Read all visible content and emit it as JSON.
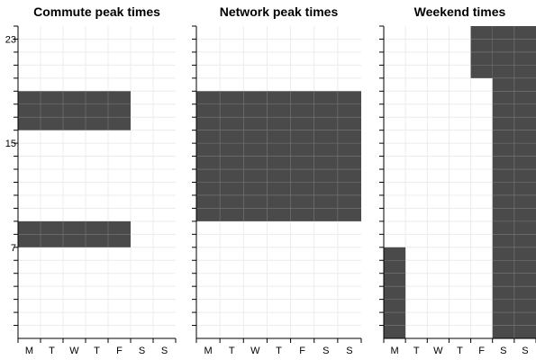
{
  "chart_data": [
    {
      "type": "heatmap",
      "title": "Commute peak times",
      "days": [
        "M",
        "T",
        "W",
        "T",
        "F",
        "S",
        "S"
      ],
      "hour_range": [
        0,
        24
      ],
      "ytick_labels": [
        "7",
        "15",
        "23"
      ],
      "ytick_values": [
        7,
        15,
        23
      ],
      "grid": true,
      "fill_color": "#4a4a4a",
      "blocks": [
        {
          "day_start": 0,
          "day_end": 5,
          "hour_start": 7,
          "hour_end": 9
        },
        {
          "day_start": 0,
          "day_end": 5,
          "hour_start": 16,
          "hour_end": 19
        }
      ]
    },
    {
      "type": "heatmap",
      "title": "Network peak times",
      "days": [
        "M",
        "T",
        "W",
        "T",
        "F",
        "S",
        "S"
      ],
      "hour_range": [
        0,
        24
      ],
      "ytick_labels": [],
      "ytick_values": [],
      "grid": true,
      "fill_color": "#4a4a4a",
      "blocks": [
        {
          "day_start": 0,
          "day_end": 7,
          "hour_start": 9,
          "hour_end": 19
        }
      ]
    },
    {
      "type": "heatmap",
      "title": "Weekend times",
      "days": [
        "M",
        "T",
        "W",
        "T",
        "F",
        "S",
        "S"
      ],
      "hour_range": [
        0,
        24
      ],
      "ytick_labels": [],
      "ytick_values": [],
      "grid": true,
      "fill_color": "#4a4a4a",
      "blocks": [
        {
          "day_start": 0,
          "day_end": 1,
          "hour_start": 0,
          "hour_end": 7
        },
        {
          "day_start": 4,
          "day_end": 5,
          "hour_start": 20,
          "hour_end": 24
        },
        {
          "day_start": 5,
          "day_end": 7,
          "hour_start": 0,
          "hour_end": 24
        }
      ]
    }
  ]
}
